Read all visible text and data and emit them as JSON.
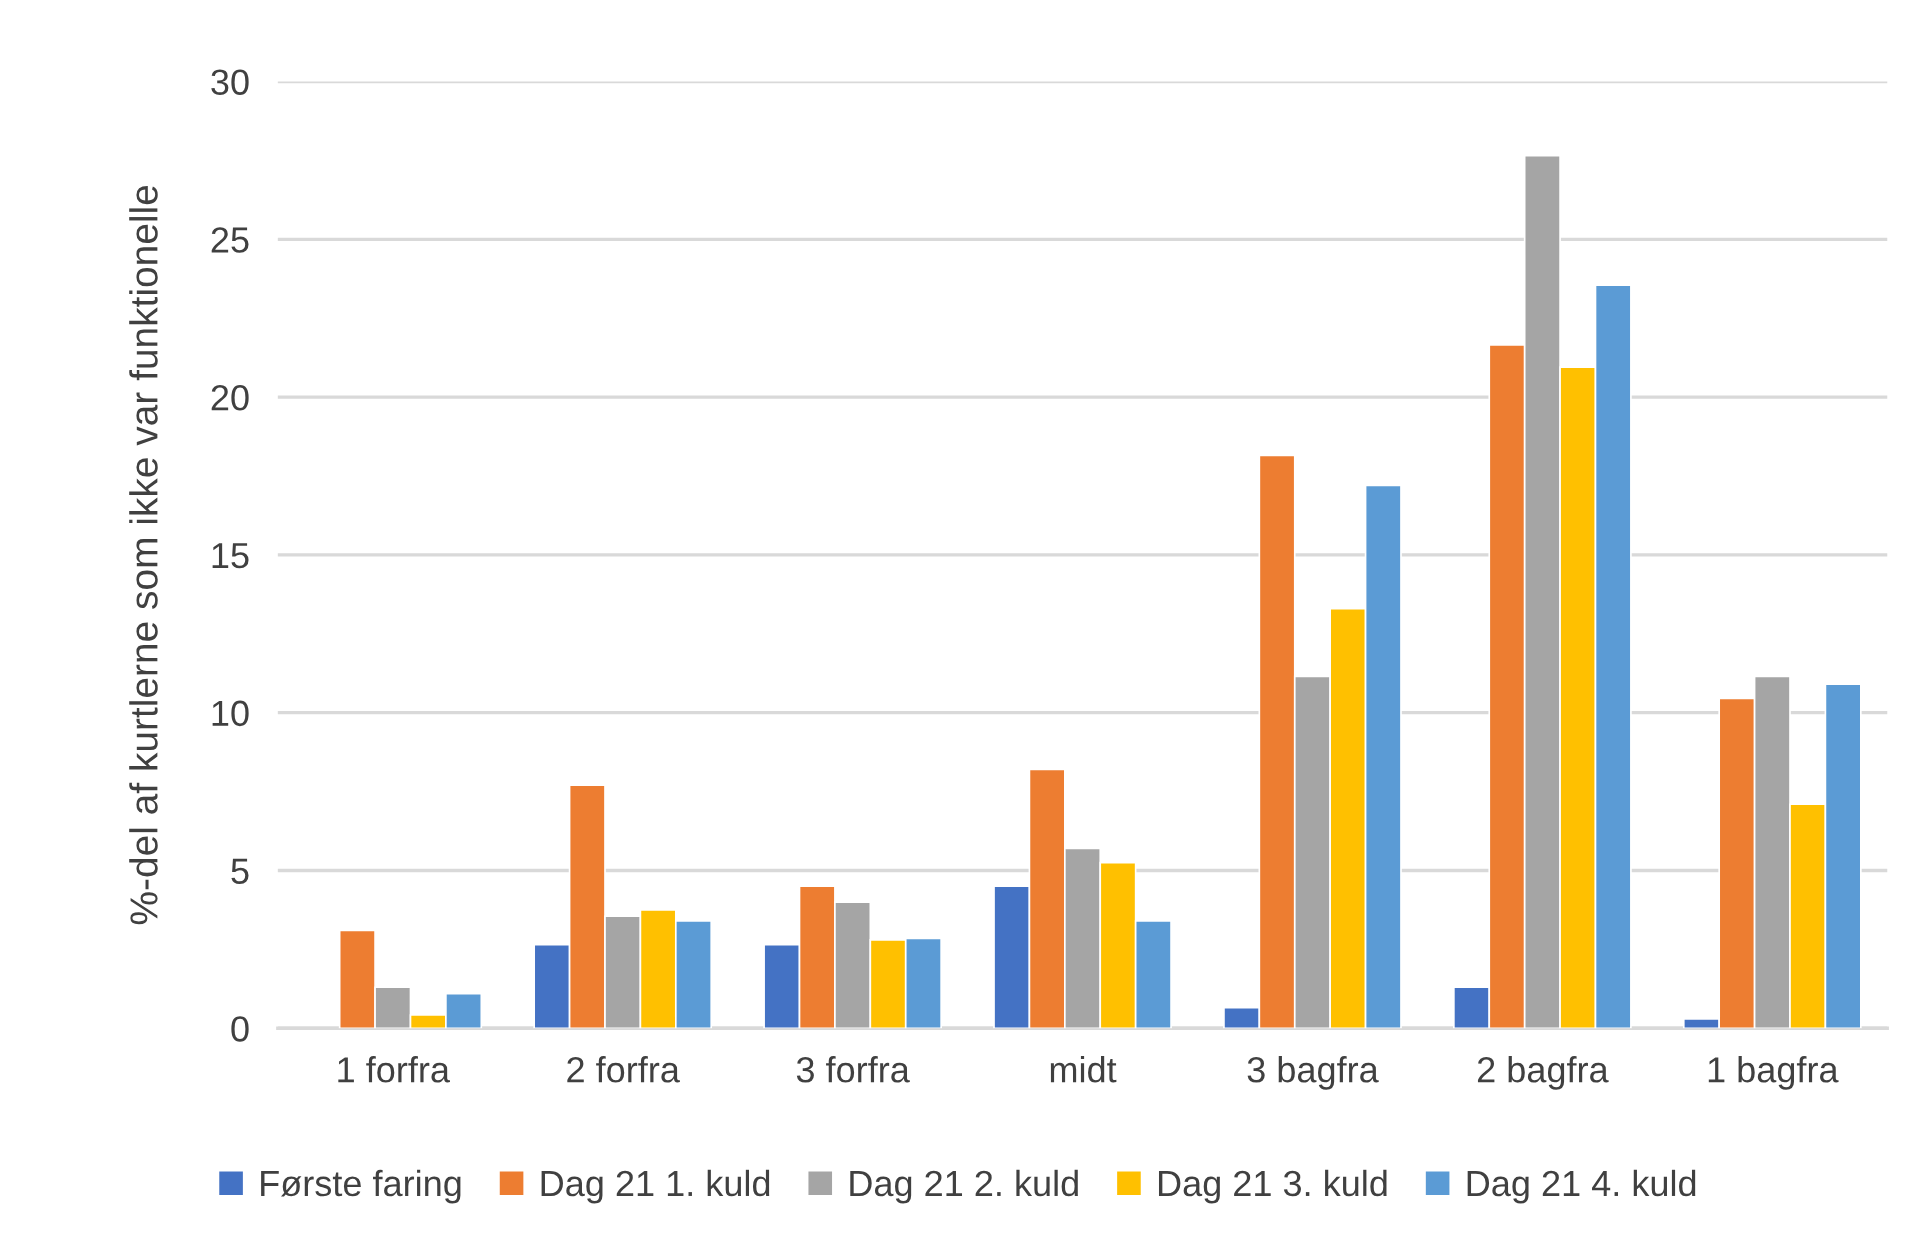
{
  "chart_data": {
    "type": "bar",
    "ylabel": "%-del af kurtlerne som ikke var funktionelle",
    "categories": [
      "1 forfra",
      "2 forfra",
      "3 forfra",
      "midt",
      "3 bagfra",
      "2 bagfra",
      "1 bagfra"
    ],
    "series": [
      {
        "name": "Første faring",
        "color": "#4472c4",
        "values": [
          null,
          2.65,
          2.65,
          4.5,
          0.65,
          1.3,
          0.3
        ]
      },
      {
        "name": "Dag 21 1. kuld",
        "color": "#ed7d31",
        "values": [
          3.1,
          7.7,
          4.5,
          8.2,
          18.15,
          21.65,
          10.45
        ]
      },
      {
        "name": "Dag 21 2. kuld",
        "color": "#a5a5a5",
        "values": [
          1.3,
          3.55,
          4.0,
          5.7,
          11.15,
          27.65,
          11.15
        ]
      },
      {
        "name": "Dag 21 3. kuld",
        "color": "#ffc000",
        "values": [
          0.42,
          3.75,
          2.8,
          5.25,
          13.3,
          20.95,
          7.1
        ]
      },
      {
        "name": "Dag 21 4. kuld",
        "color": "#5b9bd5",
        "values": [
          1.1,
          3.4,
          2.85,
          3.4,
          17.2,
          23.55,
          10.9
        ]
      }
    ],
    "ylim": [
      0,
      30
    ],
    "yticks": [
      0,
      5,
      10,
      15,
      20,
      25,
      30
    ],
    "grid": "y",
    "legend": "bottom"
  }
}
